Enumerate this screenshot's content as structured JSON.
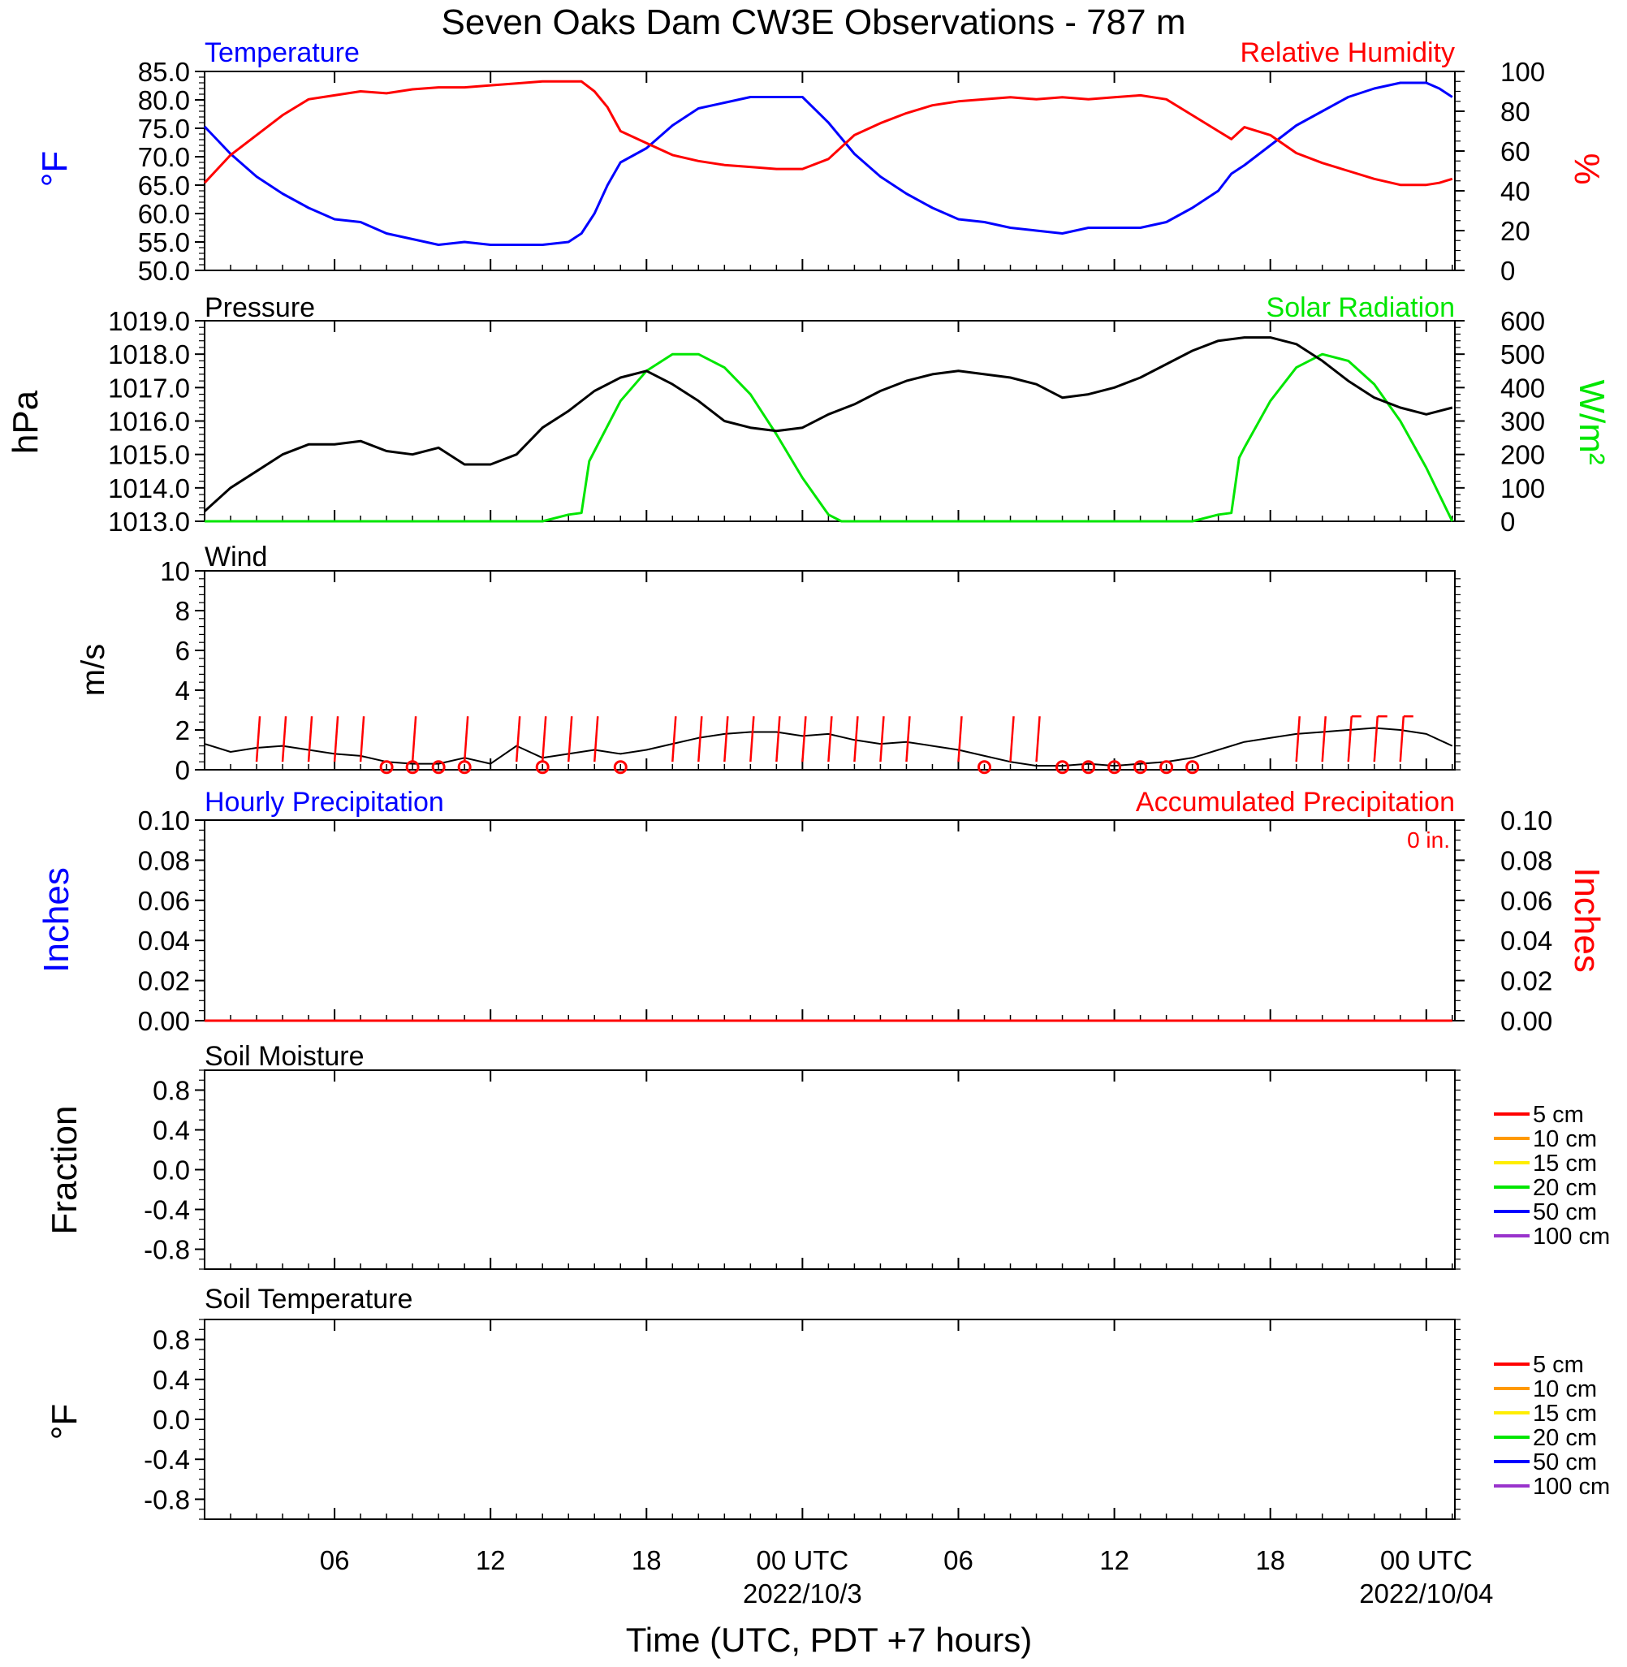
{
  "title": "Seven Oaks Dam CW3E Observations - 787 m",
  "xaxis": {
    "label": "Time (UTC, PDT +7 hours)",
    "ticks": [
      {
        "hour": 6,
        "label": "06",
        "date": ""
      },
      {
        "hour": 12,
        "label": "12",
        "date": ""
      },
      {
        "hour": 18,
        "label": "18",
        "date": ""
      },
      {
        "hour": 24,
        "label": "00 UTC",
        "date": "2022/10/3"
      },
      {
        "hour": 30,
        "label": "06",
        "date": ""
      },
      {
        "hour": 36,
        "label": "12",
        "date": ""
      },
      {
        "hour": 42,
        "label": "18",
        "date": ""
      },
      {
        "hour": 48,
        "label": "00 UTC",
        "date": "2022/10/04"
      }
    ],
    "range_hours": [
      1,
      49.1
    ]
  },
  "colors": {
    "temperature": "#0000ff",
    "humidity": "#ff0000",
    "pressure": "#000000",
    "solar": "#00e600",
    "wind": "#000000",
    "barb": "#ff0000"
  },
  "chart_data": [
    {
      "type": "line",
      "panel": "temperature-humidity",
      "left_title": "Temperature",
      "right_title": "Relative Humidity",
      "ylabel_left": "°F",
      "ylabel_right": "%",
      "ylim_left": [
        50,
        85
      ],
      "ylim_right": [
        0,
        100
      ],
      "yticks_left": [
        "50.0",
        "55.0",
        "60.0",
        "65.0",
        "70.0",
        "75.0",
        "80.0",
        "85.0"
      ],
      "yticks_right": [
        "0",
        "20",
        "40",
        "60",
        "80",
        "100"
      ],
      "series": [
        {
          "name": "Temperature",
          "axis": "left",
          "x": [
            1,
            2,
            3,
            4,
            5,
            6,
            7,
            8,
            9,
            10,
            11,
            12,
            13,
            14,
            15,
            15.5,
            16,
            16.5,
            17,
            18,
            19,
            20,
            21,
            22,
            23,
            24,
            25,
            26,
            27,
            28,
            29,
            30,
            31,
            32,
            33,
            34,
            35,
            36,
            37,
            38,
            39,
            40,
            40.5,
            41,
            42,
            43,
            44,
            45,
            46,
            47,
            48,
            48.5,
            49
          ],
          "y": [
            75.3,
            70.5,
            66.5,
            63.5,
            61,
            59,
            58.5,
            56.5,
            55.5,
            54.5,
            55,
            54.5,
            54.5,
            54.5,
            55,
            56.5,
            60,
            65,
            69,
            71.5,
            75.5,
            78.5,
            79.5,
            80.5,
            80.5,
            80.5,
            76,
            70.5,
            66.5,
            63.5,
            61,
            59,
            58.5,
            57.5,
            57,
            56.5,
            57.5,
            57.5,
            57.5,
            58.5,
            61,
            64,
            67,
            68.5,
            72,
            75.5,
            78,
            80.5,
            82,
            83,
            83,
            82,
            80.5
          ]
        },
        {
          "name": "Relative Humidity",
          "axis": "right",
          "x": [
            1,
            2,
            3,
            4,
            5,
            6,
            7,
            8,
            9,
            10,
            11,
            12,
            13,
            14,
            15,
            15.5,
            16,
            16.5,
            17,
            18,
            19,
            20,
            21,
            22,
            23,
            24,
            25,
            26,
            27,
            28,
            29,
            30,
            31,
            32,
            33,
            34,
            35,
            36,
            37,
            38,
            39,
            40,
            40.5,
            41,
            42,
            43,
            44,
            45,
            46,
            47,
            48,
            48.5,
            49
          ],
          "y": [
            44,
            58,
            68,
            78,
            86,
            88,
            90,
            89,
            91,
            92,
            92,
            93,
            94,
            95,
            95,
            95,
            90,
            82,
            70,
            64,
            58,
            55,
            53,
            52,
            51,
            51,
            56,
            68,
            74,
            79,
            83,
            85,
            86,
            87,
            86,
            87,
            86,
            87,
            88,
            86,
            78,
            70,
            66,
            72,
            68,
            59,
            54,
            50,
            46,
            43,
            43,
            44,
            46
          ]
        }
      ]
    },
    {
      "type": "line",
      "panel": "pressure-solar",
      "left_title": "Pressure",
      "right_title": "Solar Radiation",
      "ylabel_left": "hPa",
      "ylabel_right": "W/m²",
      "ylim_left": [
        1013,
        1019
      ],
      "ylim_right": [
        0,
        600
      ],
      "yticks_left": [
        "1013.0",
        "1014.0",
        "1015.0",
        "1016.0",
        "1017.0",
        "1018.0",
        "1019.0"
      ],
      "yticks_right": [
        "0",
        "100",
        "200",
        "300",
        "400",
        "500",
        "600"
      ],
      "series": [
        {
          "name": "Pressure",
          "axis": "left",
          "x": [
            1,
            2,
            3,
            4,
            5,
            6,
            7,
            8,
            9,
            10,
            11,
            12,
            13,
            14,
            15,
            16,
            17,
            18,
            19,
            20,
            21,
            22,
            23,
            24,
            25,
            26,
            27,
            28,
            29,
            30,
            31,
            32,
            33,
            34,
            35,
            36,
            37,
            38,
            39,
            40,
            41,
            42,
            43,
            44,
            45,
            46,
            47,
            48,
            49
          ],
          "y": [
            1013.3,
            1014.0,
            1014.5,
            1015.0,
            1015.3,
            1015.3,
            1015.4,
            1015.1,
            1015.0,
            1015.2,
            1014.7,
            1014.7,
            1015.0,
            1015.8,
            1016.3,
            1016.9,
            1017.3,
            1017.5,
            1017.1,
            1016.6,
            1016.0,
            1015.8,
            1015.7,
            1015.8,
            1016.2,
            1016.5,
            1016.9,
            1017.2,
            1017.4,
            1017.5,
            1017.4,
            1017.3,
            1017.1,
            1016.7,
            1016.8,
            1017.0,
            1017.3,
            1017.7,
            1018.1,
            1018.4,
            1018.5,
            1018.5,
            1018.3,
            1017.8,
            1017.2,
            1016.7,
            1016.4,
            1016.2,
            1016.4
          ]
        },
        {
          "name": "Solar Radiation",
          "axis": "right",
          "x": [
            1,
            14,
            15,
            15.5,
            15.8,
            16,
            17,
            18,
            19,
            20,
            21,
            22,
            23,
            24,
            25,
            25.5,
            26,
            39,
            40,
            40.5,
            40.8,
            41,
            42,
            43,
            44,
            45,
            46,
            47,
            48,
            48.5,
            49
          ],
          "y": [
            0,
            0,
            20,
            25,
            180,
            210,
            360,
            450,
            500,
            500,
            460,
            380,
            260,
            130,
            20,
            0,
            0,
            0,
            20,
            25,
            190,
            220,
            360,
            460,
            500,
            480,
            410,
            300,
            160,
            80,
            0
          ]
        }
      ]
    },
    {
      "type": "line",
      "panel": "wind",
      "left_title": "Wind",
      "ylabel_left": "m/s",
      "ylim_left": [
        0,
        10
      ],
      "yticks_left": [
        "0",
        "2",
        "4",
        "6",
        "8",
        "10"
      ],
      "series": [
        {
          "name": "Wind",
          "axis": "left",
          "x": [
            1,
            2,
            3,
            4,
            5,
            6,
            7,
            8,
            9,
            10,
            11,
            12,
            13,
            14,
            15,
            16,
            17,
            18,
            19,
            20,
            21,
            22,
            23,
            24,
            25,
            26,
            27,
            28,
            29,
            30,
            31,
            32,
            33,
            34,
            35,
            36,
            37,
            38,
            39,
            40,
            41,
            42,
            43,
            44,
            45,
            46,
            47,
            48,
            49
          ],
          "y": [
            1.3,
            0.9,
            1.1,
            1.2,
            1.0,
            0.8,
            0.7,
            0.4,
            0.3,
            0.3,
            0.6,
            0.3,
            1.2,
            0.6,
            0.8,
            1.0,
            0.8,
            1.0,
            1.3,
            1.6,
            1.8,
            1.9,
            1.9,
            1.7,
            1.8,
            1.5,
            1.3,
            1.4,
            1.2,
            1.0,
            0.7,
            0.4,
            0.2,
            0.2,
            0.3,
            0.2,
            0.3,
            0.4,
            0.6,
            1.0,
            1.4,
            1.6,
            1.8,
            1.9,
            2.0,
            2.1,
            2.0,
            1.8,
            1.2
          ]
        }
      ]
    },
    {
      "type": "line",
      "panel": "precipitation",
      "left_title": "Hourly Precipitation",
      "right_title": "Accumulated Precipitation",
      "annotation": "0 in.",
      "ylabel_left": "Inches",
      "ylabel_right": "Inches",
      "ylim_left": [
        0,
        0.1
      ],
      "ylim_right": [
        0,
        0.1
      ],
      "yticks_left": [
        "0.00",
        "0.02",
        "0.04",
        "0.06",
        "0.08",
        "0.10"
      ],
      "yticks_right": [
        "0.00",
        "0.02",
        "0.04",
        "0.06",
        "0.08",
        "0.10"
      ],
      "series": [
        {
          "name": "Accumulated Precipitation",
          "axis": "right",
          "x": [
            1,
            49
          ],
          "y": [
            0,
            0
          ]
        }
      ]
    },
    {
      "type": "line",
      "panel": "soil-moisture",
      "left_title": "Soil Moisture",
      "ylabel_left": "Fraction",
      "ylim_left": [
        -1,
        1
      ],
      "yticks_left": [
        "-0.8",
        "-0.4",
        "0.0",
        "0.4",
        "0.8"
      ],
      "legend": [
        "5 cm",
        "10 cm",
        "15 cm",
        "20 cm",
        "50 cm",
        "100 cm"
      ],
      "series": []
    },
    {
      "type": "line",
      "panel": "soil-temperature",
      "left_title": "Soil Temperature",
      "ylabel_left": "°F",
      "ylim_left": [
        -1,
        1
      ],
      "yticks_left": [
        "-0.8",
        "-0.4",
        "0.0",
        "0.4",
        "0.8"
      ],
      "legend": [
        "5 cm",
        "10 cm",
        "15 cm",
        "20 cm",
        "50 cm",
        "100 cm"
      ],
      "series": []
    }
  ],
  "wind_barbs": {
    "hours": [
      3,
      4,
      5,
      6,
      7,
      9,
      11,
      13,
      14,
      15,
      16,
      19,
      20,
      21,
      22,
      23,
      24,
      25,
      26,
      27,
      28,
      30,
      32,
      33,
      43,
      44,
      45,
      46,
      47
    ],
    "speeds_ms": [
      1.5,
      1.5,
      1.5,
      1.5,
      1.5,
      1.5,
      1.5,
      1.5,
      1.5,
      1.5,
      1.5,
      1.5,
      1.5,
      1.5,
      1.5,
      1.5,
      1.5,
      1.5,
      1.5,
      1.5,
      1.5,
      1.5,
      1.5,
      1.5,
      1.5,
      1.5,
      2.5,
      2.5,
      2.5
    ],
    "calm_hours": [
      8,
      9,
      10,
      11,
      14,
      17,
      31,
      34,
      35,
      36,
      37,
      38,
      39
    ]
  },
  "legend_colors": [
    "#ff0000",
    "#ff9900",
    "#ffee00",
    "#00e600",
    "#0000ff",
    "#9933cc"
  ]
}
